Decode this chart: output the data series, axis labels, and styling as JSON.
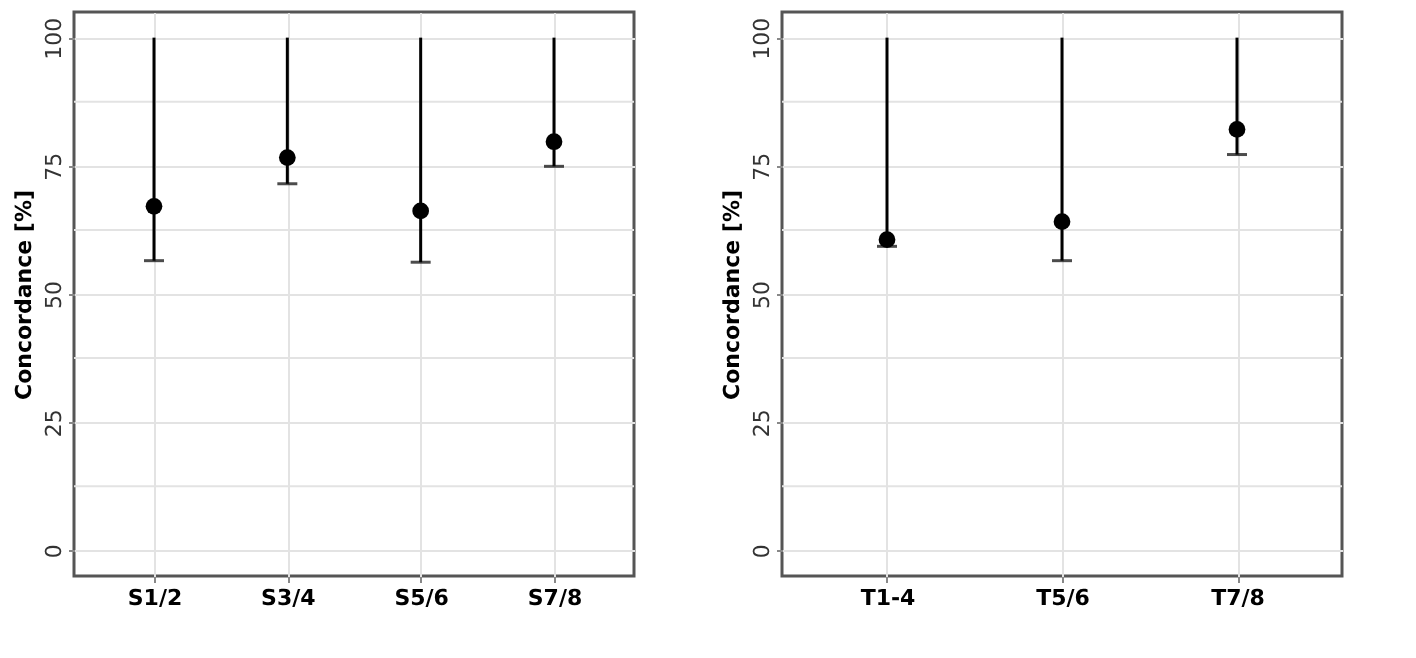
{
  "chart_data": [
    {
      "type": "scatter",
      "ylabel": "Concordance [%]",
      "categories": [
        "S1/2",
        "S3/4",
        "S5/6",
        "S7/8"
      ],
      "series": [
        {
          "color": "#000000",
          "values": [
            67.1,
            76.6,
            66.2,
            79.7
          ],
          "errors": [
            [
              56.5,
              100
            ],
            [
              71.5,
              100
            ],
            [
              56.2,
              100
            ],
            [
              74.9,
              100
            ]
          ]
        }
      ],
      "ylim": [
        -5,
        105
      ],
      "yticks": [
        0,
        {
          "value": 12.5,
          "label": null
        },
        25,
        {
          "value": 37.5,
          "label": null
        },
        50,
        {
          "value": 62.5,
          "label": null
        },
        75,
        {
          "value": 87.5,
          "label": null
        },
        100
      ],
      "grid": true,
      "marker": "circle"
    },
    {
      "type": "scatter",
      "ylabel": "Concordance [%]",
      "categories": [
        "T1-4",
        "T5/6",
        "T7/8"
      ],
      "series": [
        {
          "color": "#000000",
          "values": [
            60.6,
            64.1,
            82.1
          ],
          "errors": [
            [
              59.3,
              100
            ],
            [
              56.5,
              100
            ],
            [
              77.2,
              100
            ]
          ]
        }
      ],
      "ylim": [
        -5,
        105
      ],
      "yticks": [
        0,
        {
          "value": 12.5,
          "label": null
        },
        25,
        {
          "value": 37.5,
          "label": null
        },
        50,
        {
          "value": 62.5,
          "label": null
        },
        75,
        {
          "value": 87.5,
          "label": null
        },
        100
      ],
      "grid": true,
      "marker": "circle"
    }
  ]
}
